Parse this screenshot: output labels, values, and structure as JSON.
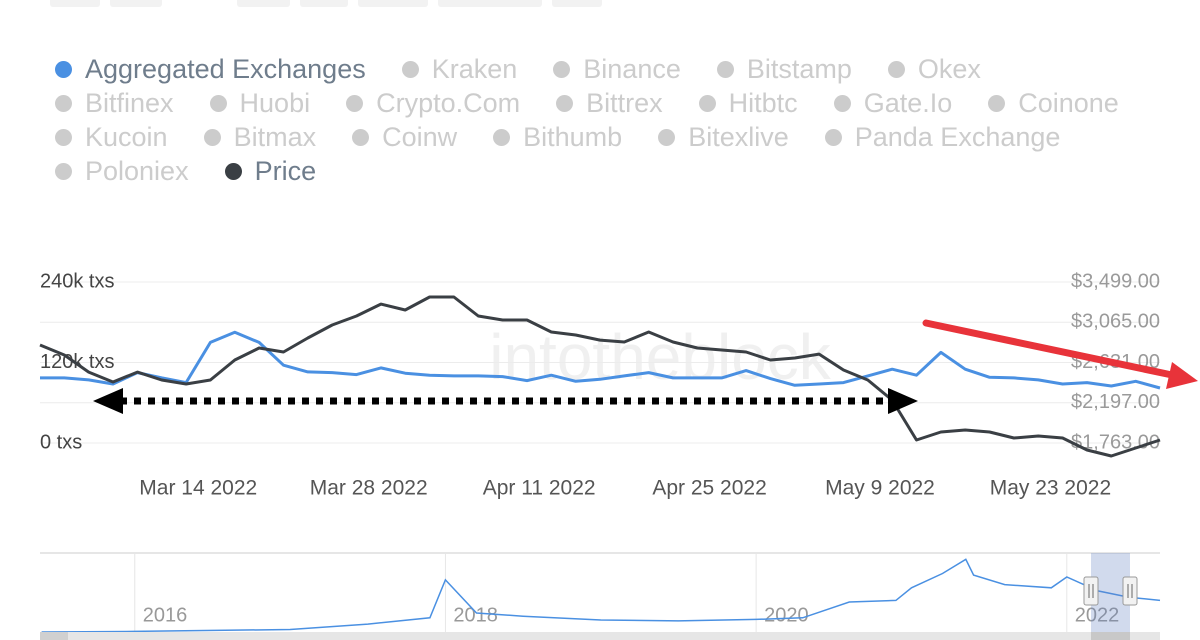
{
  "chart_data": {
    "type": "line",
    "watermark": "intotheblock",
    "x": [
      "2022-03-01",
      "2022-03-03",
      "2022-03-05",
      "2022-03-07",
      "2022-03-09",
      "2022-03-11",
      "2022-03-13",
      "2022-03-15",
      "2022-03-17",
      "2022-03-19",
      "2022-03-21",
      "2022-03-23",
      "2022-03-25",
      "2022-03-27",
      "2022-03-29",
      "2022-03-31",
      "2022-04-02",
      "2022-04-04",
      "2022-04-06",
      "2022-04-08",
      "2022-04-10",
      "2022-04-12",
      "2022-04-14",
      "2022-04-16",
      "2022-04-18",
      "2022-04-20",
      "2022-04-22",
      "2022-04-24",
      "2022-04-26",
      "2022-04-28",
      "2022-04-30",
      "2022-05-02",
      "2022-05-04",
      "2022-05-06",
      "2022-05-08",
      "2022-05-10",
      "2022-05-12",
      "2022-05-14",
      "2022-05-16",
      "2022-05-18",
      "2022-05-20",
      "2022-05-22",
      "2022-05-24",
      "2022-05-26",
      "2022-05-28",
      "2022-05-30",
      "2022-06-01"
    ],
    "xlim": [
      "2022-03-01",
      "2022-06-01"
    ],
    "xticks": [
      {
        "value": "2022-03-14",
        "label": "Mar 14 2022"
      },
      {
        "value": "2022-03-28",
        "label": "Mar 28 2022"
      },
      {
        "value": "2022-04-11",
        "label": "Apr 11 2022"
      },
      {
        "value": "2022-04-25",
        "label": "Apr 25 2022"
      },
      {
        "value": "2022-05-09",
        "label": "May 9 2022"
      },
      {
        "value": "2022-05-23",
        "label": "May 23 2022"
      }
    ],
    "ylim": [
      0,
      240000
    ],
    "yticks": [
      {
        "value": 0,
        "label": "0 txs"
      },
      {
        "value": 120000,
        "label": "120k txs"
      },
      {
        "value": 240000,
        "label": "240k txs"
      }
    ],
    "y2lim": [
      1763,
      3499
    ],
    "y2ticks": [
      {
        "value": 1763,
        "label": "$1,763.00"
      },
      {
        "value": 2197,
        "label": "$2,197.00"
      },
      {
        "value": 2631,
        "label": "$2,631.00"
      },
      {
        "value": 3065,
        "label": "$3,065.00"
      },
      {
        "value": 3499,
        "label": "$3,499.00"
      }
    ],
    "grid": true,
    "series": [
      {
        "name": "Aggregated Exchanges",
        "color": "#4a90e2",
        "visible": true,
        "values": [
          97000,
          97000,
          94000,
          88000,
          105000,
          97000,
          90000,
          150000,
          165000,
          150000,
          116000,
          106000,
          105000,
          102000,
          112000,
          104000,
          101000,
          100000,
          100000,
          99000,
          93000,
          101000,
          92000,
          95000,
          100000,
          105000,
          97000,
          97000,
          97000,
          108000,
          96000,
          86000,
          88000,
          90000,
          100000,
          110000,
          101000,
          135000,
          110000,
          98000,
          97000,
          94000,
          88000,
          90000,
          85000,
          92000,
          82000
        ]
      },
      {
        "name": "Kraken",
        "color": "#cccccc",
        "visible": false
      },
      {
        "name": "Binance",
        "color": "#cccccc",
        "visible": false
      },
      {
        "name": "Bitstamp",
        "color": "#cccccc",
        "visible": false
      },
      {
        "name": "Okex",
        "color": "#cccccc",
        "visible": false
      },
      {
        "name": "Bitfinex",
        "color": "#cccccc",
        "visible": false
      },
      {
        "name": "Huobi",
        "color": "#cccccc",
        "visible": false
      },
      {
        "name": "Crypto.Com",
        "color": "#cccccc",
        "visible": false
      },
      {
        "name": "Bittrex",
        "color": "#cccccc",
        "visible": false
      },
      {
        "name": "Hitbtc",
        "color": "#cccccc",
        "visible": false
      },
      {
        "name": "Gate.Io",
        "color": "#cccccc",
        "visible": false
      },
      {
        "name": "Coinone",
        "color": "#cccccc",
        "visible": false
      },
      {
        "name": "Kucoin",
        "color": "#cccccc",
        "visible": false
      },
      {
        "name": "Bitmax",
        "color": "#cccccc",
        "visible": false
      },
      {
        "name": "Coinw",
        "color": "#cccccc",
        "visible": false
      },
      {
        "name": "Bithumb",
        "color": "#cccccc",
        "visible": false
      },
      {
        "name": "Bitexlive",
        "color": "#cccccc",
        "visible": false
      },
      {
        "name": "Panda Exchange",
        "color": "#cccccc",
        "visible": false
      },
      {
        "name": "Poloniex",
        "color": "#cccccc",
        "visible": false
      },
      {
        "name": "Price",
        "color": "#3a3f44",
        "visible": true,
        "axis": "y2",
        "values": [
          2820,
          2712,
          2528,
          2421,
          2528,
          2442,
          2399,
          2442,
          2658,
          2787,
          2744,
          2895,
          3035,
          3132,
          3261,
          3197,
          3337,
          3337,
          3132,
          3089,
          3089,
          2960,
          2927,
          2873,
          2852,
          2960,
          2852,
          2787,
          2766,
          2744,
          2658,
          2680,
          2722,
          2550,
          2442,
          2226,
          1795,
          1882,
          1903,
          1882,
          1817,
          1838,
          1817,
          1688,
          1623,
          1709,
          1795
        ]
      }
    ],
    "navigator": {
      "type": "line",
      "color": "#4a90e2",
      "x": [
        2015.4,
        2016,
        2017,
        2017.5,
        2017.9,
        2018.0,
        2018.2,
        2018.5,
        2019,
        2019.5,
        2020,
        2020.3,
        2020.6,
        2020.9,
        2021.0,
        2021.2,
        2021.35,
        2021.4,
        2021.6,
        2021.9,
        2022.0,
        2022.2,
        2022.4,
        2022.6
      ],
      "values": [
        0,
        2000,
        8000,
        25000,
        45000,
        165000,
        60000,
        50000,
        38000,
        35000,
        40000,
        45000,
        95000,
        100000,
        140000,
        185000,
        230000,
        180000,
        150000,
        140000,
        174000,
        130000,
        110000,
        100000
      ],
      "xlim": [
        2015.39,
        2022.6
      ],
      "xticks": [
        2016,
        2018,
        2020,
        2022
      ],
      "ylim": [
        0,
        250000
      ]
    }
  }
}
